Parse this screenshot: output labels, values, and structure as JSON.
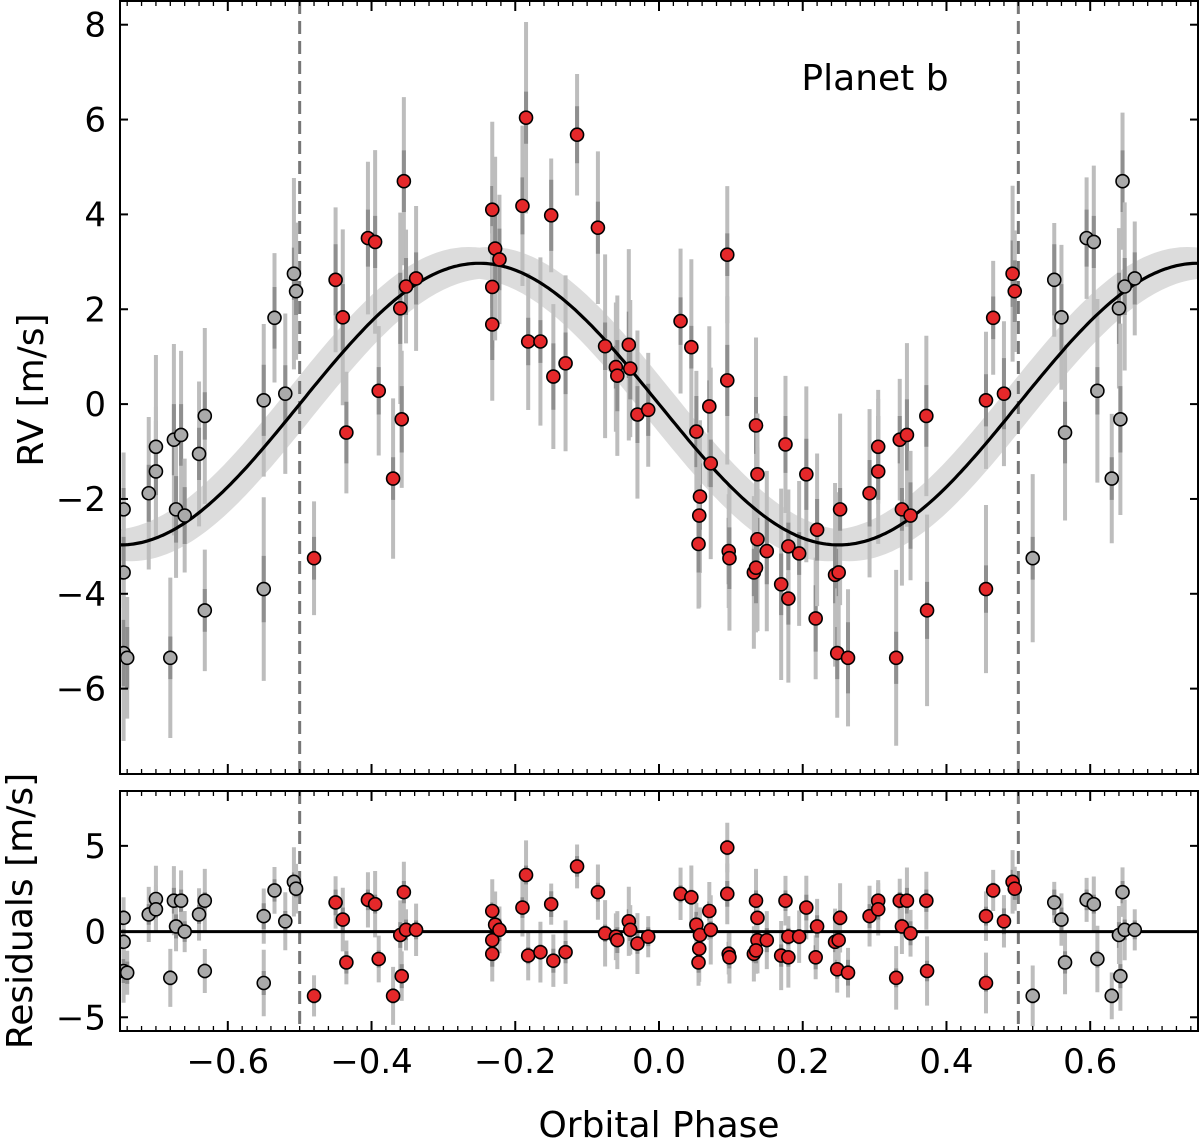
{
  "figure": {
    "xlabel": "Orbital Phase",
    "x_tick_labels": [
      "−0.6",
      "−0.4",
      "−0.2",
      "0.0",
      "0.2",
      "0.4",
      "0.6"
    ]
  },
  "chart_data": [
    {
      "type": "scatter",
      "panel": "rv",
      "title": "",
      "annotation": "Planet b",
      "xlabel": "",
      "ylabel": "RV [m/s]",
      "xlim": [
        -0.75,
        0.75
      ],
      "ylim": [
        -7.8,
        8.5
      ],
      "x_ticks": [
        -0.6,
        -0.4,
        -0.2,
        0.0,
        0.2,
        0.4,
        0.6
      ],
      "y_ticks": [
        -6,
        -4,
        -2,
        0,
        2,
        4,
        6,
        8
      ],
      "y_tick_labels": [
        "−6",
        "−4",
        "−2",
        "0",
        "2",
        "4",
        "6",
        "8"
      ],
      "grid": false,
      "vlines": [
        -0.5,
        0.5
      ],
      "model": {
        "kind": "sinusoid",
        "amplitude": 2.97,
        "period_in_phase": 1.0,
        "zero_crossing_phase": -0.5,
        "uncertainty_band": 0.6
      },
      "colors": {
        "in_phase": "#e5282a",
        "wrapped": "#aaaaaa",
        "errorbar": "#bdbdbd",
        "model": "#000000",
        "band": "#dcdcdc",
        "vline": "#777777"
      },
      "series": [
        {
          "points": [
            [
              -0.48,
              -3.25
            ],
            [
              -0.45,
              2.62
            ],
            [
              -0.44,
              1.83
            ],
            [
              -0.435,
              -0.6
            ],
            [
              -0.405,
              3.5
            ],
            [
              -0.395,
              3.42
            ],
            [
              -0.39,
              0.28
            ],
            [
              -0.37,
              -1.57
            ],
            [
              -0.36,
              2.02
            ],
            [
              -0.358,
              -0.32
            ],
            [
              -0.355,
              4.7
            ],
            [
              -0.352,
              2.48
            ],
            [
              -0.338,
              2.65
            ],
            [
              -0.232,
              4.1
            ],
            [
              -0.232,
              2.47
            ],
            [
              -0.232,
              1.68
            ],
            [
              -0.228,
              3.28
            ],
            [
              -0.222,
              3.05
            ],
            [
              -0.19,
              4.18
            ],
            [
              -0.185,
              6.04
            ],
            [
              -0.182,
              1.32
            ],
            [
              -0.165,
              1.32
            ],
            [
              -0.15,
              3.98
            ],
            [
              -0.147,
              0.58
            ],
            [
              -0.13,
              0.86
            ],
            [
              -0.114,
              5.68
            ],
            [
              -0.085,
              3.72
            ],
            [
              -0.075,
              1.22
            ],
            [
              -0.06,
              0.78
            ],
            [
              -0.058,
              0.6
            ],
            [
              -0.042,
              1.25
            ],
            [
              -0.04,
              0.75
            ],
            [
              -0.03,
              -0.22
            ],
            [
              -0.015,
              -0.12
            ],
            [
              0.03,
              1.75
            ],
            [
              0.045,
              1.2
            ],
            [
              0.052,
              -0.58
            ],
            [
              0.057,
              -1.95
            ],
            [
              0.056,
              -2.35
            ],
            [
              0.055,
              -2.95
            ],
            [
              0.07,
              -0.05
            ],
            [
              0.072,
              -1.25
            ],
            [
              0.095,
              3.15
            ],
            [
              0.095,
              0.5
            ],
            [
              0.097,
              -3.1
            ],
            [
              0.098,
              -3.25
            ],
            [
              0.135,
              -0.45
            ],
            [
              0.137,
              -1.48
            ],
            [
              0.132,
              -3.55
            ],
            [
              0.137,
              -2.85
            ],
            [
              0.135,
              -3.45
            ],
            [
              0.15,
              -3.1
            ],
            [
              0.17,
              -3.8
            ],
            [
              0.176,
              -0.85
            ],
            [
              0.18,
              -4.1
            ],
            [
              0.18,
              -3.0
            ],
            [
              0.195,
              -3.15
            ],
            [
              0.205,
              -1.48
            ],
            [
              0.218,
              -4.52
            ],
            [
              0.22,
              -2.65
            ],
            [
              0.245,
              -3.6
            ],
            [
              0.248,
              -5.25
            ],
            [
              0.25,
              -3.55
            ],
            [
              0.252,
              -2.22
            ],
            [
              0.263,
              -5.35
            ],
            [
              0.293,
              -1.88
            ],
            [
              0.305,
              -0.9
            ],
            [
              0.305,
              -1.42
            ],
            [
              0.33,
              -5.35
            ],
            [
              0.335,
              -0.75
            ],
            [
              0.338,
              -2.22
            ],
            [
              0.345,
              -0.65
            ],
            [
              0.35,
              -2.35
            ],
            [
              0.372,
              -0.25
            ],
            [
              0.373,
              -4.35
            ],
            [
              0.455,
              0.08
            ],
            [
              0.455,
              -3.9
            ],
            [
              0.465,
              1.82
            ],
            [
              0.48,
              0.22
            ],
            [
              0.492,
              2.75
            ],
            [
              0.495,
              2.38
            ]
          ],
          "color_key": "in_phase"
        },
        {
          "points": [
            [
              -0.745,
              -2.22
            ],
            [
              -0.745,
              -3.55
            ],
            [
              -0.745,
              -5.25
            ],
            [
              -0.74,
              -5.35
            ],
            [
              -0.71,
              -1.88
            ],
            [
              -0.7,
              -0.9
            ],
            [
              -0.7,
              -1.42
            ],
            [
              -0.68,
              -5.35
            ],
            [
              -0.675,
              -0.75
            ],
            [
              -0.672,
              -2.22
            ],
            [
              -0.665,
              -0.65
            ],
            [
              -0.66,
              -2.35
            ],
            [
              -0.64,
              -1.05
            ],
            [
              -0.632,
              -0.25
            ],
            [
              -0.632,
              -4.35
            ],
            [
              -0.55,
              0.08
            ],
            [
              -0.55,
              -3.9
            ],
            [
              -0.535,
              1.82
            ],
            [
              -0.52,
              0.22
            ],
            [
              -0.508,
              2.75
            ],
            [
              -0.505,
              2.38
            ],
            [
              0.52,
              -3.25
            ],
            [
              0.55,
              2.62
            ],
            [
              0.56,
              1.83
            ],
            [
              0.565,
              -0.6
            ],
            [
              0.595,
              3.5
            ],
            [
              0.605,
              3.42
            ],
            [
              0.61,
              0.28
            ],
            [
              0.63,
              -1.57
            ],
            [
              0.64,
              2.02
            ],
            [
              0.642,
              -0.32
            ],
            [
              0.645,
              4.7
            ],
            [
              0.648,
              2.48
            ],
            [
              0.662,
              2.65
            ]
          ],
          "color_key": "wrapped"
        }
      ]
    },
    {
      "type": "scatter",
      "panel": "residuals",
      "title": "",
      "xlabel": "Orbital Phase",
      "ylabel": "Residuals [m/s]",
      "xlim": [
        -0.75,
        0.75
      ],
      "ylim": [
        -5.8,
        8.2
      ],
      "x_ticks": [
        -0.6,
        -0.4,
        -0.2,
        0.0,
        0.2,
        0.4,
        0.6
      ],
      "y_ticks": [
        -5,
        0,
        5
      ],
      "y_tick_labels": [
        "−5",
        "0",
        "5"
      ],
      "grid": false,
      "vlines": [
        -0.5,
        0.5
      ],
      "zero_line": 0,
      "series": [
        {
          "points": [
            [
              -0.48,
              -3.75
            ],
            [
              -0.45,
              1.7
            ],
            [
              -0.44,
              0.7
            ],
            [
              -0.435,
              -1.8
            ],
            [
              -0.405,
              1.85
            ],
            [
              -0.395,
              1.6
            ],
            [
              -0.39,
              -1.6
            ],
            [
              -0.37,
              -3.75
            ],
            [
              -0.36,
              -0.2
            ],
            [
              -0.358,
              -2.6
            ],
            [
              -0.355,
              2.3
            ],
            [
              -0.352,
              0.1
            ],
            [
              -0.338,
              0.1
            ],
            [
              -0.232,
              1.2
            ],
            [
              -0.232,
              -0.5
            ],
            [
              -0.232,
              -1.3
            ],
            [
              -0.228,
              0.4
            ],
            [
              -0.222,
              0.1
            ],
            [
              -0.19,
              1.4
            ],
            [
              -0.185,
              3.3
            ],
            [
              -0.182,
              -1.4
            ],
            [
              -0.165,
              -1.2
            ],
            [
              -0.15,
              1.6
            ],
            [
              -0.147,
              -1.7
            ],
            [
              -0.13,
              -1.2
            ],
            [
              -0.114,
              3.8
            ],
            [
              -0.085,
              2.3
            ],
            [
              -0.075,
              -0.1
            ],
            [
              -0.06,
              -0.3
            ],
            [
              -0.058,
              -0.5
            ],
            [
              -0.042,
              0.6
            ],
            [
              -0.04,
              0.1
            ],
            [
              -0.03,
              -0.7
            ],
            [
              -0.015,
              -0.3
            ],
            [
              0.03,
              2.2
            ],
            [
              0.045,
              2.0
            ],
            [
              0.052,
              0.4
            ],
            [
              0.057,
              -0.2
            ],
            [
              0.056,
              -1.0
            ],
            [
              0.055,
              -1.8
            ],
            [
              0.07,
              1.2
            ],
            [
              0.072,
              0.1
            ],
            [
              0.095,
              4.9
            ],
            [
              0.095,
              2.2
            ],
            [
              0.097,
              -1.3
            ],
            [
              0.098,
              -1.5
            ],
            [
              0.135,
              1.8
            ],
            [
              0.137,
              0.8
            ],
            [
              0.132,
              -1.3
            ],
            [
              0.137,
              -0.5
            ],
            [
              0.135,
              -1.1
            ],
            [
              0.15,
              -0.5
            ],
            [
              0.17,
              -1.4
            ],
            [
              0.176,
              1.8
            ],
            [
              0.18,
              -1.5
            ],
            [
              0.18,
              -0.3
            ],
            [
              0.195,
              -0.3
            ],
            [
              0.205,
              1.4
            ],
            [
              0.218,
              -1.5
            ],
            [
              0.22,
              0.3
            ],
            [
              0.245,
              -0.6
            ],
            [
              0.248,
              -2.2
            ],
            [
              0.25,
              -0.5
            ],
            [
              0.252,
              0.8
            ],
            [
              0.263,
              -2.4
            ],
            [
              0.293,
              0.9
            ],
            [
              0.305,
              1.8
            ],
            [
              0.305,
              1.3
            ],
            [
              0.33,
              -2.7
            ],
            [
              0.335,
              1.8
            ],
            [
              0.338,
              0.3
            ],
            [
              0.345,
              1.8
            ],
            [
              0.35,
              -0.1
            ],
            [
              0.372,
              1.8
            ],
            [
              0.373,
              -2.3
            ],
            [
              0.455,
              0.9
            ],
            [
              0.455,
              -3.0
            ],
            [
              0.465,
              2.4
            ],
            [
              0.48,
              0.6
            ],
            [
              0.492,
              2.9
            ],
            [
              0.495,
              2.5
            ]
          ],
          "color_key": "in_phase"
        },
        {
          "points": [
            [
              -0.745,
              0.8
            ],
            [
              -0.745,
              -0.6
            ],
            [
              -0.745,
              -2.3
            ],
            [
              -0.74,
              -2.4
            ],
            [
              -0.71,
              1.0
            ],
            [
              -0.7,
              1.9
            ],
            [
              -0.7,
              1.3
            ],
            [
              -0.68,
              -2.7
            ],
            [
              -0.675,
              1.8
            ],
            [
              -0.672,
              0.3
            ],
            [
              -0.665,
              1.8
            ],
            [
              -0.66,
              0.0
            ],
            [
              -0.64,
              1.0
            ],
            [
              -0.632,
              1.8
            ],
            [
              -0.632,
              -2.3
            ],
            [
              -0.55,
              0.9
            ],
            [
              -0.55,
              -3.0
            ],
            [
              -0.535,
              2.4
            ],
            [
              -0.52,
              0.6
            ],
            [
              -0.508,
              2.9
            ],
            [
              -0.505,
              2.5
            ],
            [
              0.52,
              -3.75
            ],
            [
              0.55,
              1.7
            ],
            [
              0.56,
              0.7
            ],
            [
              0.565,
              -1.8
            ],
            [
              0.595,
              1.85
            ],
            [
              0.605,
              1.6
            ],
            [
              0.61,
              -1.6
            ],
            [
              0.63,
              -3.75
            ],
            [
              0.64,
              -0.2
            ],
            [
              0.642,
              -2.6
            ],
            [
              0.645,
              2.3
            ],
            [
              0.648,
              0.1
            ],
            [
              0.662,
              0.1
            ]
          ],
          "color_key": "wrapped"
        }
      ]
    }
  ]
}
